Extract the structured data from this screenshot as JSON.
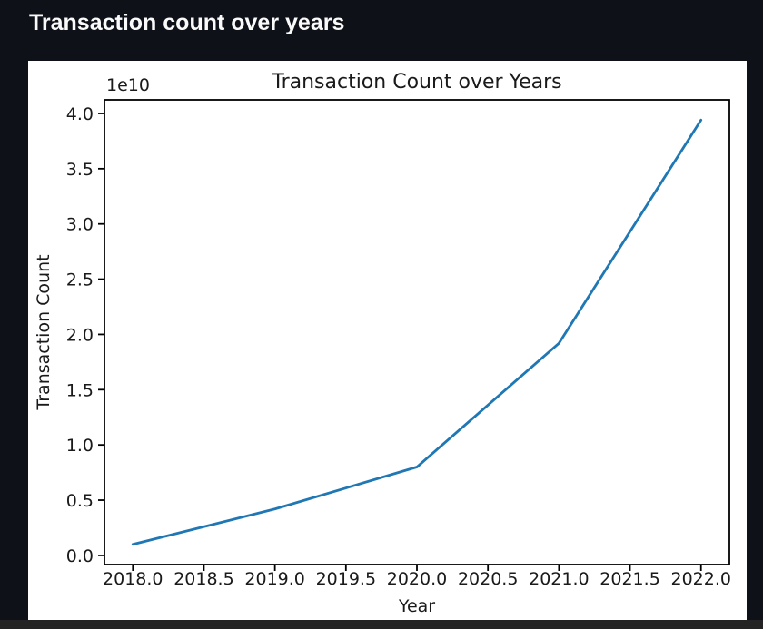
{
  "page": {
    "title": "Transaction count over years"
  },
  "theme": {
    "background": "#0e1117",
    "title_color": "#fafafa",
    "figure_background": "#ffffff",
    "bottom_bar": "#232323",
    "axis_color": "#000000",
    "chart_text_color": "#1a1a1a",
    "accent_line": "#1f77b4"
  },
  "chart_data": {
    "type": "line",
    "title": "Transaction Count over Years",
    "xlabel": "Year",
    "ylabel": "Transaction Count",
    "y_offset_text": "1e10",
    "x": [
      2018,
      2019,
      2020,
      2021,
      2022
    ],
    "y": [
      1000000000,
      4200000000,
      8000000000,
      19200000000,
      39400000000
    ],
    "series": [
      {
        "name": "Transaction Count",
        "color": "#1f77b4"
      }
    ],
    "xticks": {
      "values": [
        2018,
        2018.5,
        2019,
        2019.5,
        2020,
        2020.5,
        2021,
        2021.5,
        2022
      ],
      "labels": [
        "2018.0",
        "2018.5",
        "2019.0",
        "2019.5",
        "2020.0",
        "2020.5",
        "2021.0",
        "2021.5",
        "2022.0"
      ]
    },
    "yticks": {
      "values": [
        0,
        5000000000,
        10000000000,
        15000000000,
        20000000000,
        25000000000,
        30000000000,
        35000000000,
        40000000000
      ],
      "labels": [
        "0.0",
        "0.5",
        "1.0",
        "1.5",
        "2.0",
        "2.5",
        "3.0",
        "3.5",
        "4.0"
      ]
    },
    "xlim": [
      2017.8,
      2022.2
    ],
    "ylim": [
      -830000000,
      41230000000
    ],
    "grid": false,
    "legend": false,
    "line_color": "#1f77b4"
  }
}
